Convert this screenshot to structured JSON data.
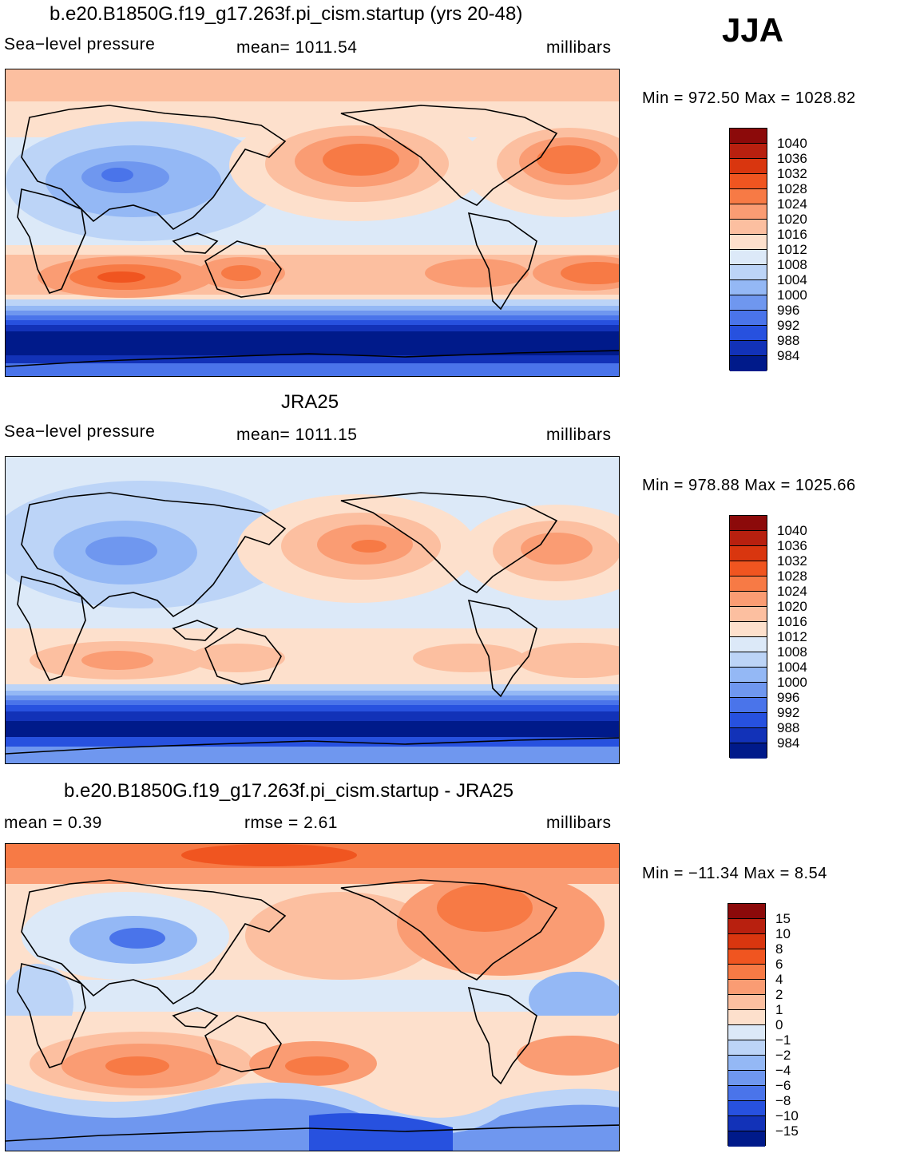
{
  "season": "JJA",
  "panels": [
    {
      "title": "b.e20.B1850G.f19_g17.263f.pi_cism.startup (yrs 20-48)",
      "left": "Sea−level pressure",
      "center": "mean=  1011.54",
      "right": "millibars",
      "minmax": "Min  =  972.50  Max  =  1028.82",
      "levels": [
        "1040",
        "1036",
        "1032",
        "1028",
        "1024",
        "1020",
        "1016",
        "1012",
        "1008",
        "1004",
        "1000",
        "996",
        "992",
        "988",
        "984"
      ]
    },
    {
      "title": "JRA25",
      "left": "Sea−level pressure",
      "center": "mean=  1011.15",
      "right": "millibars",
      "minmax": "Min  =  978.88  Max  =  1025.66",
      "levels": [
        "1040",
        "1036",
        "1032",
        "1028",
        "1024",
        "1020",
        "1016",
        "1012",
        "1008",
        "1004",
        "1000",
        "996",
        "992",
        "988",
        "984"
      ]
    },
    {
      "title": "b.e20.B1850G.f19_g17.263f.pi_cism.startup - JRA25",
      "left": "mean =     0.39",
      "center": "rmse =     2.61",
      "right": "millibars",
      "minmax": "Min  =  −11.34  Max  =     8.54",
      "levels": [
        "15",
        "10",
        "8",
        "6",
        "4",
        "2",
        "1",
        "0",
        "−1",
        "−2",
        "−4",
        "−6",
        "−8",
        "−10",
        "−15"
      ]
    }
  ],
  "colors": {
    "scale16": [
      "#8c0a0a",
      "#b8200f",
      "#d9360f",
      "#f05520",
      "#f77a45",
      "#fa9c73",
      "#fcbfa0",
      "#fde0cc",
      "#dce9f8",
      "#bcd4f7",
      "#94b8f5",
      "#6f97ef",
      "#4a74ea",
      "#2751df",
      "#1232b8",
      "#001a8a"
    ]
  }
}
